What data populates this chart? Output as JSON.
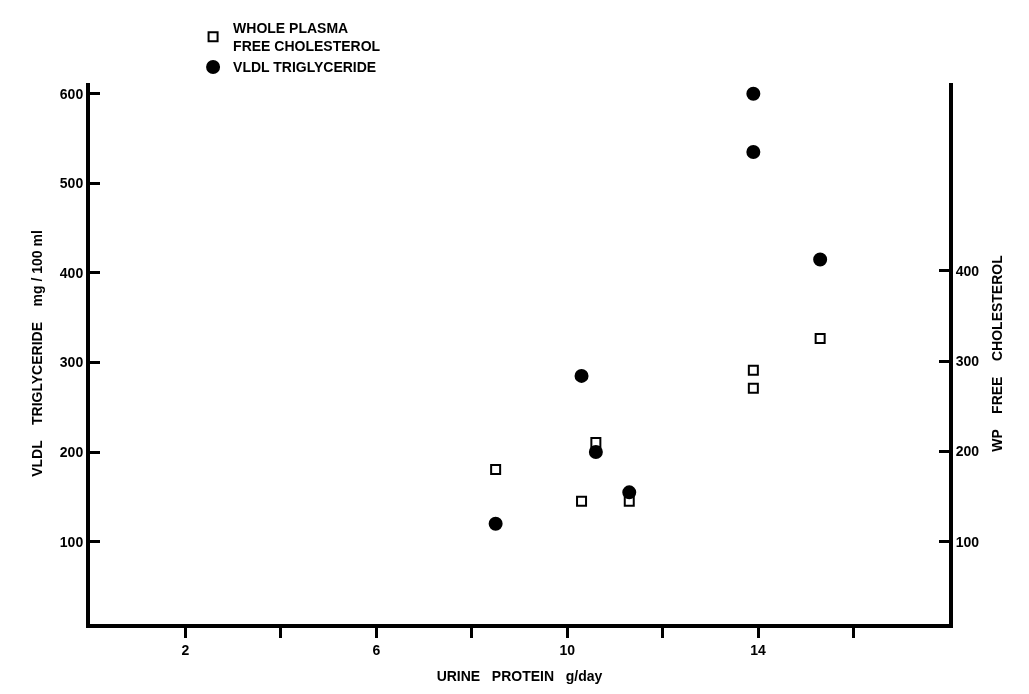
{
  "chart_data": {
    "type": "scatter",
    "xlabel": "URINE   PROTEIN   g/day",
    "ylabel": "VLDL    TRIGLYCERIDE    mg / 100 ml",
    "y2label": "WP    FREE    CHOLESTEROL",
    "xlim": [
      0,
      18
    ],
    "xticks": [
      2,
      {
        "value": 4,
        "label": null
      },
      6,
      {
        "value": 8,
        "label": null
      },
      10,
      {
        "value": 12,
        "label": null
      },
      14,
      {
        "value": 16,
        "label": null
      }
    ],
    "ylim": [
      8,
      612
    ],
    "yticks": [
      100,
      200,
      300,
      400,
      500,
      600
    ],
    "y2lim": [
      9,
      608
    ],
    "y2ticks": [
      100,
      200,
      300,
      400
    ],
    "legend": "top left",
    "series": [
      {
        "name": "WHOLE PLASMA\nFREE CHOLESTEROL",
        "color": "#000000",
        "marker": "square",
        "axis": "y2",
        "x": [
          8.5,
          10.3,
          10.6,
          11.3,
          13.9,
          13.9,
          15.3
        ],
        "values": [
          180,
          145,
          210,
          145,
          290,
          270,
          325
        ]
      },
      {
        "name": "VLDL TRIGLYCERIDE",
        "color": "#000000",
        "marker": "circle",
        "axis": "y",
        "x": [
          8.5,
          10.3,
          10.6,
          11.3,
          13.9,
          13.9,
          15.3
        ],
        "values": [
          120,
          285,
          200,
          155,
          600,
          535,
          415
        ]
      }
    ]
  }
}
